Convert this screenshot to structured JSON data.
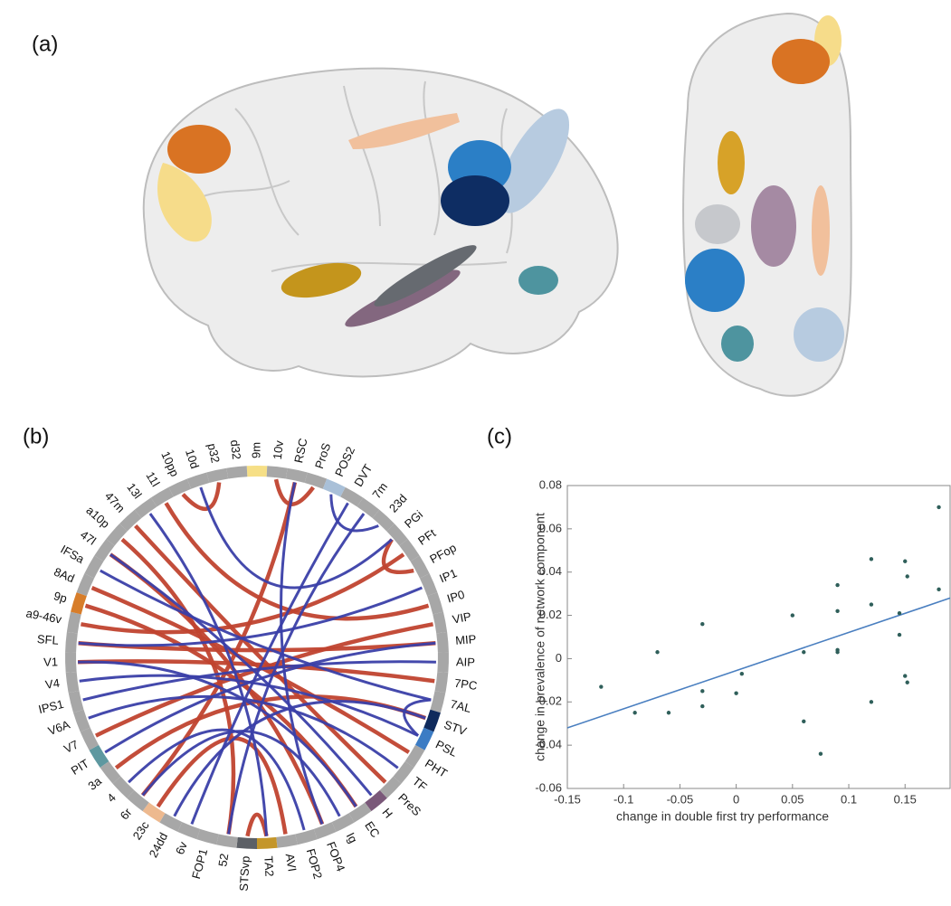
{
  "panels": {
    "a": "(a)",
    "b": "(b)",
    "c": "(c)"
  },
  "chord": {
    "labels": [
      "9m",
      "10v",
      "RSC",
      "ProS",
      "POS2",
      "DVT",
      "7m",
      "23d",
      "PGi",
      "PFt",
      "PFop",
      "IP1",
      "IP0",
      "VIP",
      "MIP",
      "AIP",
      "7PC",
      "7AL",
      "STV",
      "PSL",
      "PHT",
      "TF",
      "PreS",
      "H",
      "EC",
      "Ig",
      "FOP4",
      "FOP2",
      "AVI",
      "TA2",
      "STSvp",
      "52",
      "FOP1",
      "6v",
      "24dd",
      "23c",
      "6r",
      "4",
      "3a",
      "PIT",
      "V7",
      "V6A",
      "IPS1",
      "V4",
      "V1",
      "SFL",
      "a9-46v",
      "9p",
      "8Ad",
      "IFSa",
      "47l",
      "a10p",
      "47m",
      "13l",
      "11l",
      "10pp",
      "10d",
      "p32",
      "d32"
    ],
    "ring_color": "#a7a7a7",
    "highlights": [
      {
        "index": 0,
        "color": "#f6df86"
      },
      {
        "index": 4,
        "color": "#a9c0d8"
      },
      {
        "index": 18,
        "color": "#0f2a5c"
      },
      {
        "index": 19,
        "color": "#3c7cc4"
      },
      {
        "index": 23,
        "color": "#7a5879"
      },
      {
        "index": 29,
        "color": "#c4962a"
      },
      {
        "index": 30,
        "color": "#5c6066"
      },
      {
        "index": 35,
        "color": "#edb98f"
      },
      {
        "index": 39,
        "color": "#5e98a0"
      },
      {
        "index": 47,
        "color": "#d77d2a"
      }
    ],
    "edges": [
      {
        "from": 54,
        "to": 12,
        "color": "#c0432f"
      },
      {
        "from": 48,
        "to": 20,
        "color": "#c0432f"
      },
      {
        "from": 47,
        "to": 24,
        "color": "#c0432f"
      },
      {
        "from": 51,
        "to": 31,
        "color": "#c0432f"
      },
      {
        "from": 1,
        "to": 3,
        "color": "#c0432f"
      },
      {
        "from": 57,
        "to": 55,
        "color": "#c0432f"
      },
      {
        "from": 40,
        "to": 13,
        "color": "#c0432f"
      },
      {
        "from": 38,
        "to": 18,
        "color": "#c0432f"
      },
      {
        "from": 35,
        "to": 28,
        "color": "#c0432f"
      },
      {
        "from": 46,
        "to": 9,
        "color": "#c0432f"
      },
      {
        "from": 44,
        "to": 16,
        "color": "#c0432f"
      },
      {
        "from": 52,
        "to": 22,
        "color": "#c0432f"
      },
      {
        "from": 8,
        "to": 10,
        "color": "#c0432f"
      },
      {
        "from": 50,
        "to": 26,
        "color": "#c0432f"
      },
      {
        "from": 45,
        "to": 14,
        "color": "#c0432f"
      },
      {
        "from": 36,
        "to": 2,
        "color": "#c0432f"
      },
      {
        "from": 29,
        "to": 30,
        "color": "#c0432f"
      },
      {
        "from": 2,
        "to": 26,
        "color": "#3a3fa8"
      },
      {
        "from": 4,
        "to": 7,
        "color": "#3a3fa8"
      },
      {
        "from": 42,
        "to": 15,
        "color": "#3a3fa8"
      },
      {
        "from": 43,
        "to": 19,
        "color": "#3a3fa8"
      },
      {
        "from": 45,
        "to": 11,
        "color": "#3a3fa8"
      },
      {
        "from": 41,
        "to": 21,
        "color": "#3a3fa8"
      },
      {
        "from": 39,
        "to": 14,
        "color": "#3a3fa8"
      },
      {
        "from": 37,
        "to": 27,
        "color": "#3a3fa8"
      },
      {
        "from": 36,
        "to": 25,
        "color": "#3a3fa8"
      },
      {
        "from": 49,
        "to": 17,
        "color": "#3a3fa8"
      },
      {
        "from": 33,
        "to": 5,
        "color": "#3a3fa8"
      },
      {
        "from": 50,
        "to": 23,
        "color": "#3a3fa8"
      },
      {
        "from": 53,
        "to": 29,
        "color": "#3a3fa8"
      },
      {
        "from": 56,
        "to": 8,
        "color": "#3a3fa8"
      },
      {
        "from": 34,
        "to": 18,
        "color": "#3a3fa8"
      },
      {
        "from": 31,
        "to": 6,
        "color": "#3a3fa8"
      },
      {
        "from": 17,
        "to": 19,
        "color": "#3a3fa8"
      },
      {
        "from": 44,
        "to": 24,
        "color": "#3a3fa8"
      }
    ]
  },
  "chart_data": {
    "type": "scatter",
    "xlabel": "change in double first try performance",
    "ylabel": "change in prevalence of network component",
    "x": [
      -0.12,
      -0.09,
      -0.07,
      -0.06,
      -0.03,
      -0.03,
      -0.03,
      0,
      0.005,
      0.05,
      0.06,
      0.06,
      0.075,
      0.09,
      0.09,
      0.09,
      0.09,
      0.12,
      0.12,
      0.12,
      0.145,
      0.145,
      0.15,
      0.152,
      0.15,
      0.152,
      0.18,
      0.18
    ],
    "values": [
      -0.013,
      -0.025,
      0.003,
      -0.025,
      0.016,
      -0.015,
      -0.022,
      -0.016,
      -0.007,
      0.02,
      0.003,
      -0.029,
      -0.044,
      0.034,
      0.022,
      0.004,
      0.003,
      0.046,
      0.025,
      -0.02,
      0.021,
      0.011,
      0.045,
      0.038,
      -0.008,
      -0.011,
      0.07,
      0.032
    ],
    "color": "#2f5f5a",
    "fit": {
      "x": [
        -0.15,
        0.19
      ],
      "y": [
        -0.032,
        0.028
      ],
      "color": "#4a7fc0"
    },
    "xlim": [
      -0.15,
      0.19
    ],
    "ylim": [
      -0.06,
      0.08
    ],
    "xticks": [
      -0.15,
      -0.1,
      -0.05,
      0,
      0.05,
      0.1,
      0.15
    ],
    "yticks": [
      -0.06,
      -0.04,
      -0.02,
      0,
      0.02,
      0.04,
      0.06,
      0.08
    ]
  }
}
